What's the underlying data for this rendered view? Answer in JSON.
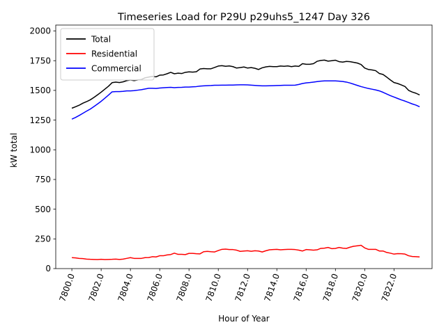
{
  "chart_data": {
    "type": "line",
    "title": "Timeseries Load for P29U p29uhs5_1247  Day 326",
    "xlabel": "Hour of Year",
    "ylabel": "kW total",
    "xlim": [
      7798.9,
      7824.6
    ],
    "ylim": [
      0,
      2050
    ],
    "xticks": [
      7800,
      7802,
      7804,
      7806,
      7808,
      7810,
      7812,
      7814,
      7816,
      7818,
      7820,
      7822
    ],
    "xtick_labels": [
      "7800.0",
      "7802.0",
      "7804.0",
      "7806.0",
      "7808.0",
      "7810.0",
      "7812.0",
      "7814.0",
      "7816.0",
      "7818.0",
      "7820.0",
      "7822.0"
    ],
    "yticks": [
      0,
      250,
      500,
      750,
      1000,
      1250,
      1500,
      1750,
      2000
    ],
    "ytick_labels": [
      "0",
      "250",
      "500",
      "750",
      "1000",
      "1250",
      "1500",
      "1750",
      "2000"
    ],
    "grid": false,
    "legend_position": "top-left",
    "x": [
      7800,
      7800.25,
      7800.5,
      7800.75,
      7801,
      7801.25,
      7801.5,
      7801.75,
      7802,
      7802.25,
      7802.5,
      7802.75,
      7803,
      7803.25,
      7803.5,
      7803.75,
      7804,
      7804.25,
      7804.5,
      7804.75,
      7805,
      7805.25,
      7805.5,
      7805.75,
      7806,
      7806.25,
      7806.5,
      7806.75,
      7807,
      7807.25,
      7807.5,
      7807.75,
      7808,
      7808.25,
      7808.5,
      7808.75,
      7809,
      7809.25,
      7809.5,
      7809.75,
      7810,
      7810.25,
      7810.5,
      7810.75,
      7811,
      7811.25,
      7811.5,
      7811.75,
      7812,
      7812.25,
      7812.5,
      7812.75,
      7813,
      7813.25,
      7813.5,
      7813.75,
      7814,
      7814.25,
      7814.5,
      7814.75,
      7815,
      7815.25,
      7815.5,
      7815.75,
      7816,
      7816.25,
      7816.5,
      7816.75,
      7817,
      7817.25,
      7817.5,
      7817.75,
      7818,
      7818.25,
      7818.5,
      7818.75,
      7819,
      7819.25,
      7819.5,
      7819.75,
      7820,
      7820.25,
      7820.5,
      7820.75,
      7821,
      7821.25,
      7821.5,
      7821.75,
      7822,
      7822.25,
      7822.5,
      7822.75,
      7823,
      7823.25,
      7823.5,
      7823.75
    ],
    "series": [
      {
        "name": "Total",
        "color": "#000000",
        "values": [
          1350,
          1362,
          1375,
          1392,
          1405,
          1420,
          1440,
          1462,
          1485,
          1510,
          1535,
          1565,
          1570,
          1566,
          1572,
          1582,
          1588,
          1582,
          1588,
          1592,
          1606,
          1612,
          1618,
          1614,
          1628,
          1630,
          1640,
          1652,
          1640,
          1645,
          1642,
          1652,
          1656,
          1654,
          1657,
          1680,
          1684,
          1682,
          1682,
          1693,
          1705,
          1708,
          1703,
          1706,
          1700,
          1688,
          1692,
          1697,
          1688,
          1692,
          1686,
          1676,
          1690,
          1698,
          1702,
          1700,
          1700,
          1705,
          1703,
          1706,
          1700,
          1705,
          1702,
          1725,
          1720,
          1720,
          1725,
          1745,
          1752,
          1755,
          1746,
          1750,
          1754,
          1742,
          1738,
          1744,
          1742,
          1736,
          1730,
          1718,
          1688,
          1676,
          1672,
          1666,
          1642,
          1634,
          1612,
          1588,
          1566,
          1558,
          1546,
          1533,
          1500,
          1486,
          1476,
          1462
        ]
      },
      {
        "name": "Residential",
        "color": "#ff0000",
        "values": [
          92,
          90,
          86,
          84,
          80,
          78,
          77,
          76,
          78,
          76,
          77,
          78,
          80,
          77,
          80,
          86,
          92,
          86,
          86,
          86,
          92,
          93,
          100,
          98,
          108,
          108,
          115,
          118,
          130,
          120,
          120,
          118,
          128,
          128,
          125,
          124,
          142,
          145,
          142,
          140,
          152,
          162,
          164,
          160,
          160,
          155,
          145,
          148,
          150,
          146,
          150,
          148,
          140,
          150,
          158,
          160,
          162,
          158,
          160,
          162,
          162,
          160,
          155,
          148,
          160,
          158,
          155,
          158,
          170,
          172,
          178,
          168,
          170,
          178,
          172,
          170,
          180,
          188,
          192,
          196,
          174,
          162,
          162,
          162,
          148,
          148,
          136,
          130,
          122,
          126,
          125,
          122,
          108,
          102,
          100,
          98
        ]
      },
      {
        "name": "Commercial",
        "color": "#0000ff",
        "values": [
          1258,
          1272,
          1289,
          1307,
          1325,
          1342,
          1363,
          1385,
          1408,
          1434,
          1460,
          1488,
          1490,
          1490,
          1492,
          1496,
          1496,
          1498,
          1502,
          1506,
          1512,
          1518,
          1518,
          1516,
          1520,
          1522,
          1524,
          1526,
          1523,
          1525,
          1526,
          1528,
          1528,
          1530,
          1532,
          1536,
          1538,
          1540,
          1541,
          1543,
          1543,
          1544,
          1544,
          1545,
          1545,
          1546,
          1547,
          1547,
          1546,
          1544,
          1542,
          1540,
          1538,
          1538,
          1539,
          1540,
          1541,
          1542,
          1543,
          1543,
          1543,
          1544,
          1550,
          1558,
          1563,
          1566,
          1570,
          1574,
          1578,
          1580,
          1580,
          1580,
          1580,
          1578,
          1575,
          1570,
          1562,
          1552,
          1542,
          1532,
          1524,
          1516,
          1510,
          1504,
          1496,
          1484,
          1470,
          1456,
          1444,
          1432,
          1420,
          1410,
          1398,
          1386,
          1376,
          1362
        ]
      }
    ]
  }
}
